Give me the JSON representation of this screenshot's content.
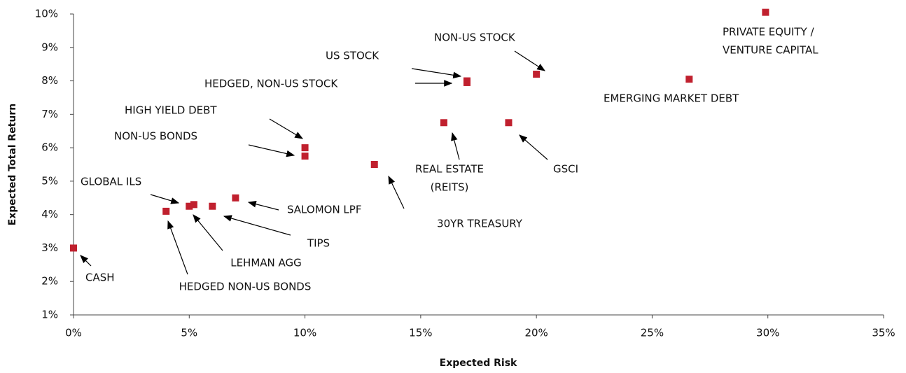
{
  "chart_data": {
    "type": "scatter",
    "x_label": "Expected Risk",
    "y_label": "Expected Total Return",
    "color": "#c0202e",
    "labels": [
      "CASH",
      "HEDGED NON-US BONDS",
      "GLOBAL ILS",
      "LEHMAN AGG",
      "TIPS",
      "SALOMON LPF",
      "NON-US BONDS",
      "HIGH YIELD DEBT",
      "30YR TREASURY",
      [
        "REAL ESTATE",
        "(REITS)"
      ],
      "GSCI",
      "HEDGED, NON-US STOCK",
      "US STOCK",
      "NON-US STOCK",
      "EMERGING MARKET DEBT",
      [
        "PRIVATE EQUITY /",
        "VENTURE CAPITAL"
      ]
    ],
    "x": [
      0,
      4.0,
      5.0,
      5.2,
      6.0,
      7.0,
      10.0,
      10.0,
      13.0,
      16.0,
      18.8,
      17.0,
      17.0,
      20.0,
      26.6,
      29.9
    ],
    "values": [
      3.0,
      4.1,
      4.25,
      4.3,
      4.25,
      4.5,
      5.75,
      6.0,
      5.5,
      6.75,
      6.75,
      7.95,
      8.0,
      8.2,
      8.05,
      10.05
    ],
    "xlim": [
      0,
      35
    ],
    "xticks": [
      {
        "value": 0,
        "label": "0%"
      },
      {
        "value": 5,
        "label": "5%"
      },
      {
        "value": 10,
        "label": "10%"
      },
      {
        "value": 15,
        "label": "15%"
      },
      {
        "value": 20,
        "label": "20%"
      },
      {
        "value": 25,
        "label": "25%"
      },
      {
        "value": 30,
        "label": "30%"
      },
      {
        "value": 35,
        "label": "35%"
      }
    ],
    "ylim": [
      1,
      10
    ],
    "yticks": [
      {
        "value": 1,
        "label": "1%"
      },
      {
        "value": 2,
        "label": "2%"
      },
      {
        "value": 3,
        "label": "3%"
      },
      {
        "value": 4,
        "label": "4%"
      },
      {
        "value": 5,
        "label": "5%"
      },
      {
        "value": 6,
        "label": "6%"
      },
      {
        "value": 7,
        "label": "7%"
      },
      {
        "value": 8,
        "label": "8%"
      },
      {
        "value": 9,
        "label": "9%"
      },
      {
        "value": 10,
        "label": "10%"
      }
    ],
    "grid": false
  }
}
